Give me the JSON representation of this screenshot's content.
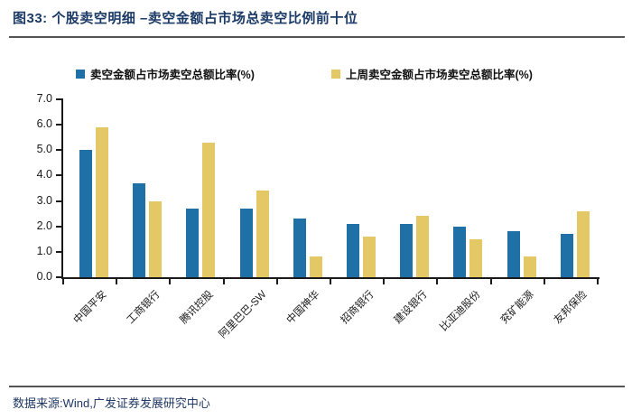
{
  "figure": {
    "title": "图33: 个股卖空明细 –卖空金额占市场总卖空比例前十位",
    "source": "数据来源:Wind,广发证券发展研究中心"
  },
  "colors": {
    "series_blue": "#2070A8",
    "series_yellow": "#E4C865",
    "title_navy": "#1B3A66",
    "axis": "#1A1A1A"
  },
  "chart_data": {
    "type": "bar",
    "categories": [
      "中国平安",
      "工商银行",
      "腾讯控股",
      "阿里巴巴-SW",
      "中国神华",
      "招商银行",
      "建设银行",
      "比亚迪股份",
      "兖矿能源",
      "友邦保险"
    ],
    "series": [
      {
        "name": "卖空金额占市场卖空总额比率(%)",
        "color": "#2070A8",
        "values": [
          5.0,
          3.7,
          2.7,
          2.7,
          2.3,
          2.1,
          2.1,
          2.0,
          1.8,
          1.7
        ]
      },
      {
        "name": "上周卖空金额占市场卖空总额比率(%)",
        "color": "#E4C865",
        "values": [
          5.9,
          3.0,
          5.3,
          3.4,
          0.8,
          1.6,
          2.4,
          1.5,
          0.8,
          2.6
        ]
      }
    ],
    "ylim": [
      0,
      7
    ],
    "ytick_step": 1,
    "ytick_labels": [
      "0.0",
      "1.0",
      "2.0",
      "3.0",
      "4.0",
      "5.0",
      "6.0",
      "7.0"
    ],
    "xlabel": "",
    "ylabel": "",
    "grid": false,
    "legend_position": "top"
  }
}
